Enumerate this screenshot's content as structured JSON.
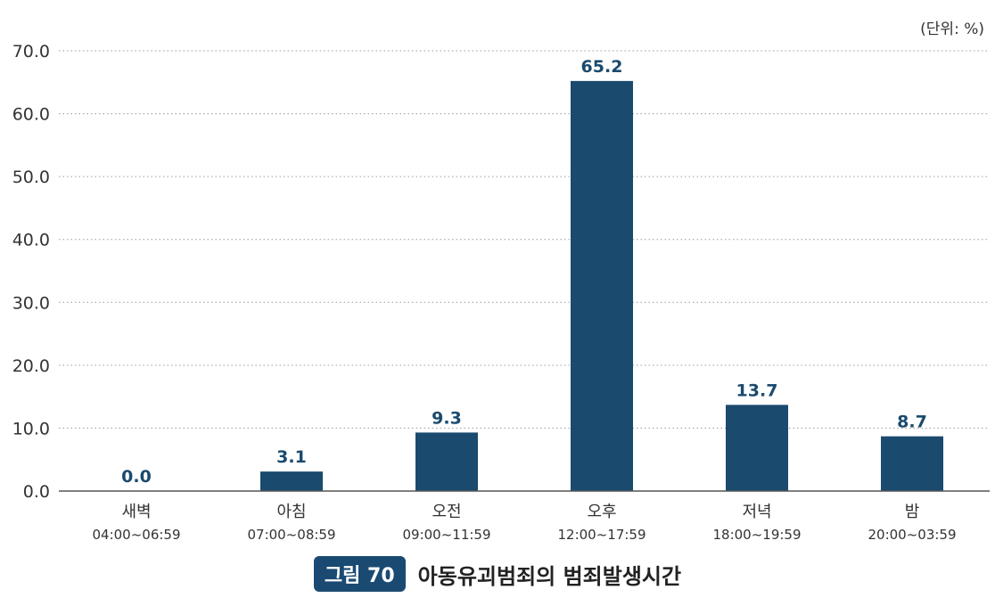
{
  "unit_label": "(단위: %)",
  "caption": {
    "badge": "그림 70",
    "title": "아동유괴범죄의 범죄발생시간"
  },
  "colors": {
    "bar": "#1a4a6e",
    "label": "#1a4a6e",
    "grid": "#9a9a9a",
    "axis": "#555555"
  },
  "chart_data": {
    "type": "bar",
    "categories": [
      "새벽",
      "아침",
      "오전",
      "오후",
      "저녁",
      "밤"
    ],
    "category_ranges": [
      "04:00~06:59",
      "07:00~08:59",
      "09:00~11:59",
      "12:00~17:59",
      "18:00~19:59",
      "20:00~03:59"
    ],
    "values": [
      0.0,
      3.1,
      9.3,
      65.2,
      13.7,
      8.7
    ],
    "value_labels": [
      "0.0",
      "3.1",
      "9.3",
      "65.2",
      "13.7",
      "8.7"
    ],
    "yticks": [
      "0.0",
      "10.0",
      "20.0",
      "30.0",
      "40.0",
      "50.0",
      "60.0",
      "70.0"
    ],
    "ylim": [
      0,
      70
    ],
    "grid": true,
    "legend": "none"
  }
}
